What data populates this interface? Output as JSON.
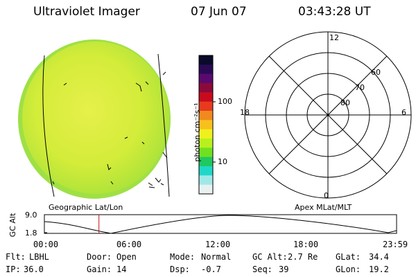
{
  "header": {
    "instrument": "Ultraviolet Imager",
    "date": "07 Jun 07",
    "time": "03:43:28 UT"
  },
  "colorbar": {
    "label": "photon cm⁻²s⁻¹",
    "ticks": [
      {
        "label": "100",
        "value": 100
      },
      {
        "label": "10",
        "value": 10
      }
    ],
    "stops": [
      "#0a0a2a",
      "#2a0a55",
      "#5a0a6e",
      "#8a0a3a",
      "#c80a1e",
      "#e83a1e",
      "#f08a1e",
      "#f8c01e",
      "#f0f01e",
      "#b8f01e",
      "#70e020",
      "#20c860",
      "#20d8c8",
      "#a0e8e8",
      "#e8f0f0"
    ]
  },
  "panels": {
    "left_label": "Geographic Lat/Lon",
    "right_label": "Apex MLat/MLT"
  },
  "polar_plot": {
    "mlt_labels": {
      "top": "12",
      "left": "18",
      "right": "6",
      "bottom": "0"
    },
    "lat_labels": [
      "60",
      "70",
      "80"
    ]
  },
  "altitude_plot": {
    "ylabel": "GC Alt",
    "yticks": [
      "9.0",
      "1.8"
    ],
    "xticks": [
      "00:00",
      "06:00",
      "12:00",
      "18:00",
      "23:59"
    ],
    "marker_time": "03:43",
    "marker_color": "#c01010"
  },
  "status": {
    "flt_label": "Flt:",
    "flt_value": "LBHL",
    "door_label": "Door:",
    "door_value": "Open",
    "mode_label": "Mode:",
    "mode_value": "Normal",
    "gcalt_label": "GC Alt:",
    "gcalt_value": "2.7 Re",
    "glat_label": "GLat:",
    "glat_value": "34.4",
    "ip_label": "IP:",
    "ip_value": "36.0",
    "gain_label": "Gain:",
    "gain_value": "14",
    "dsp_label": "Dsp:",
    "dsp_value": "-0.7",
    "seq_label": "Seq:",
    "seq_value": "39",
    "glon_label": "GLon:",
    "glon_value": "19.2"
  }
}
